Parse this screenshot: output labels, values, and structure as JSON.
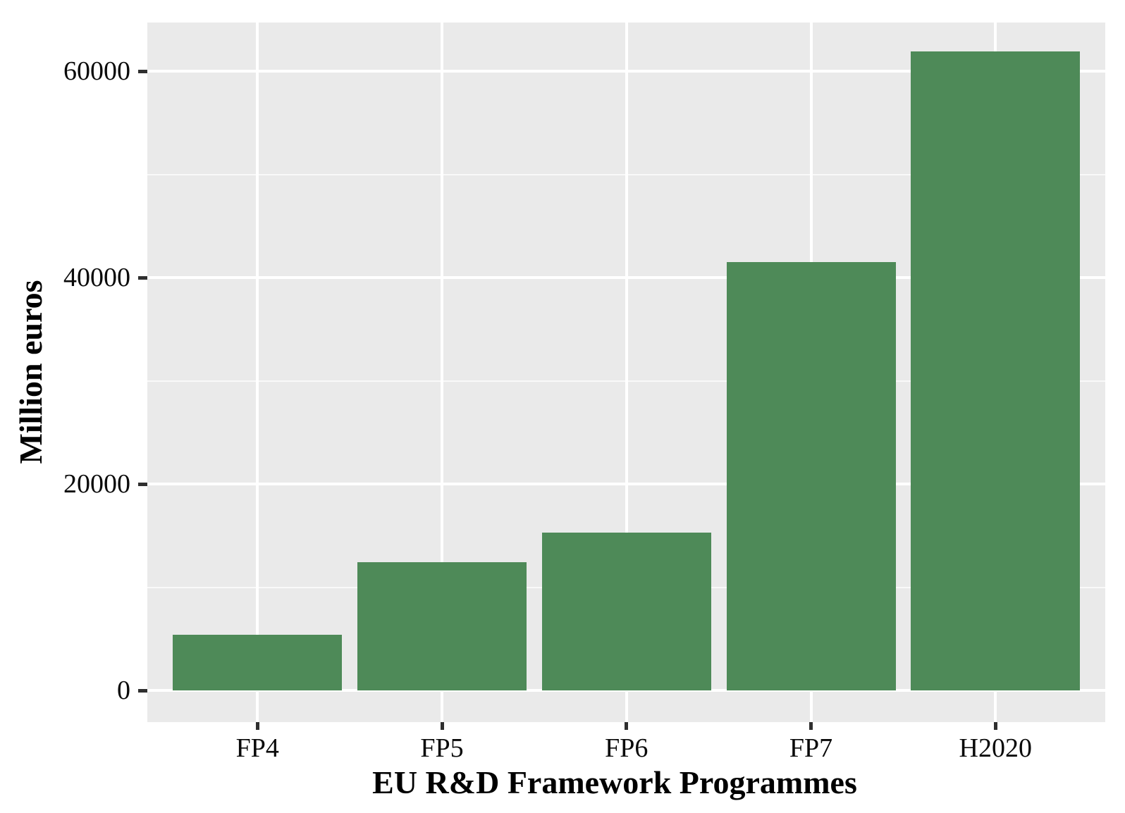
{
  "chart_data": {
    "type": "bar",
    "title": "",
    "categories": [
      "FP4",
      "FP5",
      "FP6",
      "FP7",
      "H2020"
    ],
    "values": [
      5400,
      12400,
      15300,
      41500,
      61900
    ],
    "xlabel": "EU R&D Framework Programmes",
    "ylabel": "Million euros",
    "yticks": [
      0,
      20000,
      40000,
      60000
    ],
    "ytick_labels": [
      "0",
      "20000",
      "40000",
      "60000"
    ],
    "minor_yticks": [
      10000,
      30000,
      50000
    ],
    "ylim": [
      0,
      64700
    ],
    "grid": "major-and-minor, white on gray panel",
    "legend_position": "none",
    "bar_color": "#4e8a58",
    "panel_background_color": "#eaeaea",
    "gridline_color": "#ffffff",
    "tick_mark_color": "#2f2f2f",
    "text_color": "#000000"
  }
}
